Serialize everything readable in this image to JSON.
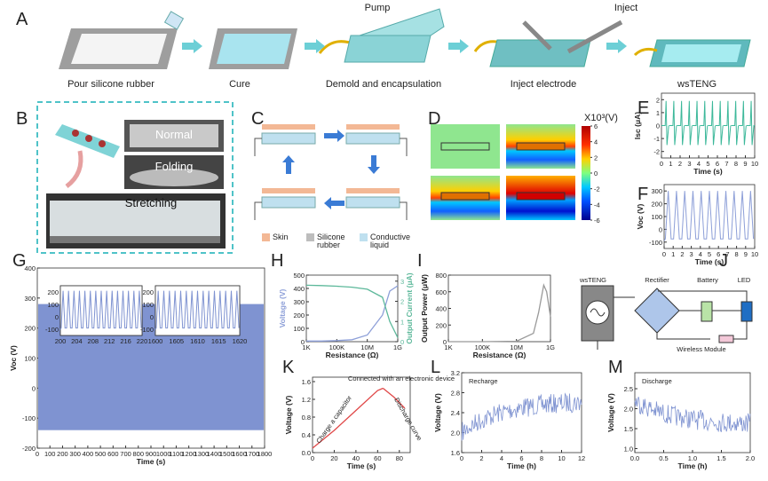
{
  "panel_labels": [
    "A",
    "B",
    "C",
    "D",
    "E",
    "F",
    "G",
    "H",
    "I",
    "J",
    "K",
    "L",
    "M"
  ],
  "panel_a": {
    "steps": [
      "Pour silicone rubber",
      "Cure",
      "Demold and encapsulation",
      "Inject electrode",
      "wsTENG"
    ],
    "tools": [
      "Pump",
      "Inject"
    ]
  },
  "panel_b": {
    "states": [
      "Normal",
      "Folding",
      "Stretching"
    ]
  },
  "panel_c": {
    "legend": [
      "Skin",
      "Silicone rubber",
      "Conductive liquid"
    ]
  },
  "panel_j": {
    "components": [
      "wsTENG",
      "Rectifier",
      "Battery",
      "LED",
      "Wireless Module"
    ]
  },
  "chart_data": [
    {
      "type": "line",
      "ylabel": "Isc (μA)",
      "xlabel": "Time (s)",
      "xlim": [
        0,
        10
      ],
      "xticks": [
        0,
        1,
        2,
        3,
        4,
        5,
        6,
        7,
        8,
        9,
        10
      ],
      "ylim": [
        -2.5,
        2.5
      ],
      "yticks": [
        2,
        1,
        0,
        -1,
        -2
      ],
      "color": "#3cb89a"
    },
    {
      "type": "line",
      "ylabel": "Voc (V)",
      "xlabel": "Time (s)",
      "xlim": [
        0,
        10
      ],
      "xticks": [
        0,
        1,
        2,
        3,
        4,
        5,
        6,
        7,
        8,
        9,
        10
      ],
      "ylim": [
        -150,
        350
      ],
      "yticks": [
        300,
        200,
        100,
        0,
        -100
      ],
      "color": "#8d9fd8"
    },
    {
      "type": "line",
      "ylabel": "Voc (V)",
      "xlabel": "Time (s)",
      "xlim": [
        0,
        1800
      ],
      "xticks": [
        0,
        100,
        200,
        300,
        400,
        500,
        600,
        700,
        800,
        900,
        1000,
        1100,
        1200,
        1300,
        1400,
        1500,
        1600,
        1700,
        1800
      ],
      "ylim": [
        -200,
        400
      ],
      "yticks": [
        400,
        300,
        200,
        100,
        0,
        -100,
        -200
      ],
      "color": "#7f93d1"
    },
    {
      "type": "line",
      "xlim": [
        200,
        220
      ],
      "xticks": [
        200,
        204,
        208,
        212,
        216,
        220
      ],
      "ylim": [
        -150,
        250
      ],
      "yticks": [
        200,
        100,
        0,
        -100
      ],
      "color": "#7f93d1"
    },
    {
      "type": "line",
      "xlim": [
        1600,
        1620
      ],
      "xticks": [
        1600,
        1605,
        1610,
        1615,
        1620
      ],
      "ylim": [
        -150,
        250
      ],
      "yticks": [
        200,
        100,
        0,
        -100
      ],
      "color": "#7f93d1"
    },
    {
      "type": "line",
      "xlabel": "Resistance (Ω)",
      "ylabel": "Voltage (V)",
      "y2label": "Output Current (μA)",
      "log": true,
      "xlim": [
        1000,
        1000000000
      ],
      "xticks": [
        {
          "value": 1000,
          "label": "1K"
        },
        {
          "value": 100000,
          "label": "100K"
        },
        {
          "value": 10000000,
          "label": "10M"
        },
        {
          "value": 1000000000,
          "label": "1G"
        }
      ],
      "ylim": [
        0,
        500
      ],
      "yticks": [
        0,
        100,
        200,
        300,
        400,
        500
      ],
      "y2lim": [
        0,
        3.3
      ],
      "y2ticks": [
        0,
        1,
        2,
        3
      ],
      "x": [
        1000,
        10000,
        100000,
        1000000,
        10000000,
        100000000,
        300000000,
        1000000000
      ],
      "series": [
        {
          "name": "Voltage",
          "color": "#8d9fd8",
          "values": [
            5,
            5,
            8,
            15,
            50,
            200,
            380,
            420
          ]
        },
        {
          "name": "Output Current",
          "color": "#5cb89a",
          "axis": "y2",
          "values": [
            2.8,
            2.78,
            2.75,
            2.7,
            2.6,
            2.2,
            1.0,
            0.2
          ]
        }
      ]
    },
    {
      "type": "line",
      "xlabel": "Resistance (Ω)",
      "ylabel": "Output Power (μW)",
      "log": true,
      "xlim": [
        1000,
        1000000000
      ],
      "xticks": [
        {
          "value": 1000,
          "label": "1K"
        },
        {
          "value": 100000,
          "label": "100K"
        },
        {
          "value": 10000000,
          "label": "10M"
        },
        {
          "value": 1000000000,
          "label": "1G"
        }
      ],
      "ylim": [
        0,
        800
      ],
      "yticks": [
        0,
        200,
        400,
        600,
        800
      ],
      "x": [
        1000,
        100000,
        10000000,
        100000000,
        200000000,
        400000000,
        600000000,
        1000000000
      ],
      "series": [
        {
          "name": "Output Power",
          "color": "#999999",
          "values": [
            0,
            0,
            5,
            100,
            350,
            680,
            600,
            300
          ]
        }
      ]
    },
    {
      "type": "line",
      "xlabel": "Time (s)",
      "ylabel": "Voltage (V)",
      "xlim": [
        0,
        90
      ],
      "xticks": [
        0,
        20,
        40,
        60,
        80
      ],
      "ylim": [
        0,
        1.7
      ],
      "yticks": [
        {
          "value": 0,
          "label": "0.0"
        },
        0.4,
        0.8,
        1.2,
        1.6
      ],
      "annotations": [
        "Connected with an electronic device",
        "Charge a capacitor",
        "Discharge curve"
      ],
      "series": [
        {
          "name": "Charge a capacitor",
          "color": "#e04848",
          "x": [
            0,
            20,
            40,
            60,
            65
          ],
          "values": [
            0.1,
            0.5,
            0.95,
            1.4,
            1.45
          ]
        },
        {
          "name": "Discharge curve",
          "color": "#e04848",
          "x": [
            65,
            75,
            85
          ],
          "values": [
            1.45,
            1.25,
            1.0
          ]
        }
      ]
    },
    {
      "type": "line",
      "xlabel": "Time (h)",
      "ylabel": "Voltage (V)",
      "xlim": [
        0,
        12
      ],
      "xticks": [
        0,
        2,
        4,
        6,
        8,
        10,
        12
      ],
      "ylim": [
        1.6,
        3.2
      ],
      "yticks": [
        1.6,
        {
          "value": 2,
          "label": "2.0"
        },
        2.4,
        2.8,
        3.2
      ],
      "annotations": [
        "Recharge"
      ],
      "color": "#7f93d1"
    },
    {
      "type": "line",
      "xlabel": "Time (h)",
      "ylabel": "Voltage (V)",
      "xlim": [
        0,
        2
      ],
      "xticks": [
        {
          "value": 0,
          "label": "0.0"
        },
        0.5,
        {
          "value": 1,
          "label": "1.0"
        },
        1.5,
        {
          "value": 2,
          "label": "2.0"
        }
      ],
      "ylim": [
        0.9,
        2.9
      ],
      "yticks": [
        {
          "value": 1,
          "label": "1.0"
        },
        1.5,
        {
          "value": 2,
          "label": "2.0"
        },
        2.5
      ],
      "annotations": [
        "Discharge"
      ],
      "color": "#7f93d1"
    },
    {
      "type": "colorbar",
      "title": "X10³(V)",
      "ylim": [
        -6,
        6
      ],
      "yticks": [
        6,
        4,
        2,
        0,
        -2,
        -4,
        -6
      ]
    }
  ]
}
